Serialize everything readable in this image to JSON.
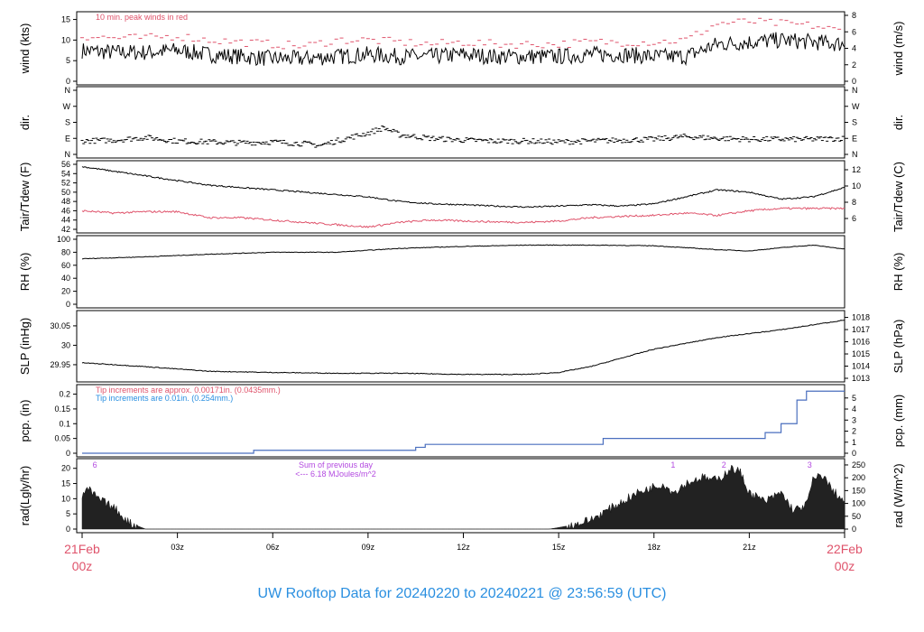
{
  "title": "UW Rooftop Data for 20240220  to  20240221 @ 23:56:59  (UTC)",
  "colors": {
    "title": "#2a8fe0",
    "date": "#df536b",
    "peak": "#df536b",
    "dew": "#df536b",
    "pcp": "#4a6fbf",
    "tipA": "#df536b",
    "tipB": "#2a8fe0",
    "radNote": "#b34ae0"
  },
  "x_axis": {
    "range_hours": [
      0,
      24
    ],
    "ticks": [
      {
        "h": 3,
        "label": "03z"
      },
      {
        "h": 6,
        "label": "06z"
      },
      {
        "h": 9,
        "label": "09z"
      },
      {
        "h": 12,
        "label": "12z"
      },
      {
        "h": 15,
        "label": "15z"
      },
      {
        "h": 18,
        "label": "18z"
      },
      {
        "h": 21,
        "label": "21z"
      }
    ],
    "start_label": [
      "21Feb",
      "00z"
    ],
    "end_label": [
      "22Feb",
      "00z"
    ]
  },
  "chart_data": [
    {
      "type": "line",
      "ylabel": "wind (kts)",
      "ylabel_right": "wind (m/s)",
      "ylim": [
        0,
        16
      ],
      "yticks": [
        0,
        5,
        10,
        15
      ],
      "yticks_right": [
        0,
        2,
        4,
        6,
        8
      ],
      "annotation": "10 min. peak winds in red",
      "x": [
        0,
        1,
        2,
        3,
        4,
        5,
        6,
        7,
        8,
        9,
        10,
        11,
        12,
        13,
        14,
        15,
        16,
        17,
        18,
        19,
        20,
        21,
        22,
        23,
        24
      ],
      "mean": [
        7.5,
        7,
        7,
        7.5,
        6.5,
        6,
        5.5,
        5.5,
        6,
        6.5,
        6,
        6,
        6.5,
        6,
        6,
        6,
        6.5,
        6.5,
        6,
        6,
        9,
        9.5,
        10,
        9.5,
        9
      ],
      "peak": [
        11,
        10.5,
        10.5,
        11,
        10,
        9.5,
        9,
        8.5,
        10,
        10,
        9.5,
        9,
        9.5,
        9,
        9,
        9,
        9.5,
        9.5,
        9.5,
        10,
        14,
        14.5,
        14,
        13.5,
        12
      ]
    },
    {
      "type": "scatter",
      "ylabel": "dir.",
      "ylabel_right": "dir.",
      "yticks": [
        "N",
        "E",
        "S",
        "W",
        "N"
      ],
      "x": [
        0,
        1,
        2,
        3,
        4,
        5,
        6,
        7,
        7.5,
        8,
        9,
        9.5,
        10,
        11,
        12,
        13,
        14,
        15,
        16,
        17,
        18,
        19,
        20,
        21,
        22,
        23,
        24
      ],
      "deg": [
        75,
        80,
        95,
        75,
        70,
        65,
        70,
        60,
        50,
        75,
        120,
        150,
        110,
        90,
        80,
        75,
        75,
        70,
        75,
        80,
        85,
        100,
        90,
        85,
        85,
        85,
        90
      ]
    },
    {
      "type": "line",
      "ylabel": "Tair/Tdew (F)",
      "ylabel_right": "Tair/Tdew (C)",
      "ylim": [
        42,
        56
      ],
      "yticks": [
        42,
        44,
        46,
        48,
        50,
        52,
        54,
        56
      ],
      "yticks_right": [
        6,
        8,
        10,
        12
      ],
      "x": [
        0,
        1,
        2,
        3,
        4,
        5,
        6,
        7,
        8,
        9,
        10,
        11,
        12,
        13,
        14,
        15,
        16,
        17,
        18,
        19,
        20,
        21,
        22,
        23,
        24
      ],
      "tair": [
        55.5,
        54.5,
        53.5,
        52.5,
        51.5,
        51,
        50.5,
        50,
        49.5,
        49,
        48,
        47.5,
        47.3,
        47,
        46.8,
        47,
        47.3,
        47,
        47.5,
        49,
        50.5,
        50,
        48.5,
        49,
        51
      ],
      "tdew": [
        46,
        45.5,
        45.8,
        45.8,
        44.5,
        44.5,
        44,
        43.5,
        43,
        42.5,
        43.5,
        44,
        43.8,
        43.6,
        43.5,
        43.8,
        44.5,
        44.8,
        45,
        45.5,
        45,
        46,
        46.5,
        46.5,
        46.5
      ]
    },
    {
      "type": "line",
      "ylabel": "RH (%)",
      "ylabel_right": "RH (%)",
      "ylim": [
        0,
        100
      ],
      "yticks": [
        0,
        20,
        40,
        60,
        80,
        100
      ],
      "x": [
        0,
        2,
        4,
        6,
        8,
        10,
        12,
        14,
        16,
        18,
        20,
        21,
        22,
        23,
        24
      ],
      "rh": [
        70,
        73,
        77,
        80,
        80,
        86,
        89,
        91,
        91,
        90,
        84,
        82,
        87,
        91,
        85
      ]
    },
    {
      "type": "line",
      "ylabel": "SLP (inHg)",
      "ylabel_right": "SLP (hPa)",
      "ylim": [
        29.915,
        30.08
      ],
      "yticks": [
        29.95,
        30.0,
        30.05
      ],
      "yticks_right": [
        1013,
        1014,
        1015,
        1016,
        1017,
        1018
      ],
      "x": [
        0,
        2,
        4,
        6,
        8,
        10,
        12,
        14,
        15,
        16,
        18,
        20,
        22,
        24
      ],
      "slp": [
        29.955,
        29.945,
        29.933,
        29.93,
        29.928,
        29.928,
        29.925,
        29.925,
        29.93,
        29.945,
        29.99,
        30.02,
        30.04,
        30.065
      ]
    },
    {
      "type": "line",
      "ylabel": "pcp. (in)",
      "ylabel_right": "pcp. (mm)",
      "ylim": [
        0,
        0.22
      ],
      "yticks": [
        0,
        0.05,
        0.1,
        0.15,
        0.2
      ],
      "yticks_right": [
        0,
        1,
        2,
        3,
        4,
        5
      ],
      "notes": [
        "Tip increments are approx. 0.00171in. (0.0435mm.)",
        "Tip increments are 0.01in. (0.254mm.)"
      ],
      "x": [
        0,
        5.4,
        10.4,
        10.5,
        10.8,
        16,
        16.4,
        21,
        21.5,
        22,
        22.5,
        22.8,
        24
      ],
      "pcp": [
        0,
        0.01,
        0.01,
        0.02,
        0.03,
        0.03,
        0.05,
        0.05,
        0.07,
        0.1,
        0.18,
        0.21,
        0.21
      ]
    },
    {
      "type": "area",
      "ylabel": "rad(Lgly/hr)",
      "ylabel_right": "rad (W/m^2)",
      "ylim": [
        0,
        22
      ],
      "yticks": [
        0,
        5,
        10,
        15,
        20
      ],
      "yticks_right": [
        0,
        50,
        100,
        150,
        200,
        250
      ],
      "annotations": [
        {
          "h": 0.4,
          "label": "6"
        },
        {
          "h": 18.6,
          "label": "1"
        },
        {
          "h": 20.2,
          "label": "2"
        },
        {
          "h": 22.9,
          "label": "3"
        }
      ],
      "note": [
        "Sum of previous day",
        "<--- 6.18 MJoules/m^2"
      ],
      "x": [
        0,
        0.2,
        0.5,
        1,
        1.5,
        2,
        14.7,
        15,
        15.5,
        16,
        16.5,
        17,
        17.5,
        18,
        18.3,
        18.6,
        19,
        19.5,
        20,
        20.4,
        20.7,
        21,
        21.5,
        22,
        22.4,
        22.8,
        23,
        23.3,
        23.6,
        24
      ],
      "rad": [
        11,
        13,
        10,
        7,
        2,
        0,
        0,
        0.5,
        1.5,
        3,
        6,
        9,
        12,
        14,
        15,
        12,
        15,
        17,
        16,
        20,
        19,
        12,
        9,
        12,
        6,
        8,
        16,
        18,
        13,
        9
      ]
    }
  ]
}
